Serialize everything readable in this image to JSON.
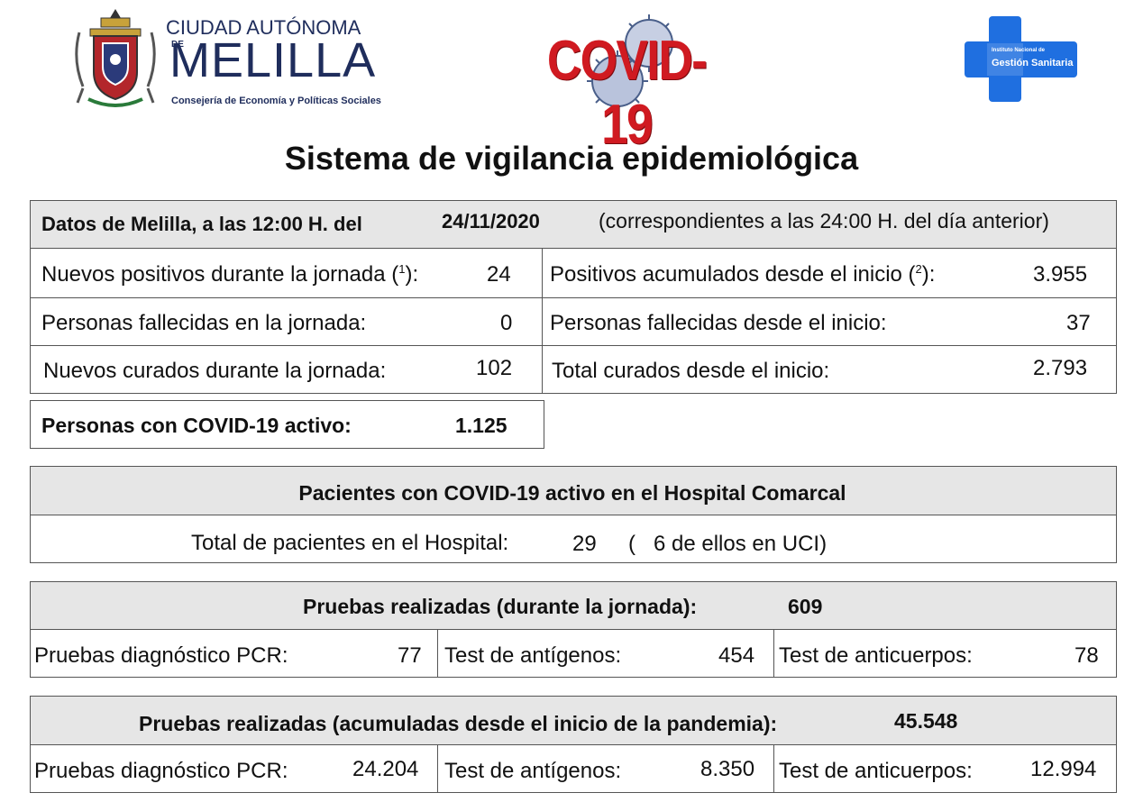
{
  "header": {
    "melilla_logo": {
      "line1": "CIUDAD AUTÓNOMA",
      "line_de": "DE",
      "line2": "MELILLA",
      "line3": "Consejería de Economía y Políticas Sociales"
    },
    "covid_logo": {
      "text": "COVID-19"
    },
    "ingesa_logo": {
      "line1": "Instituto Nacional de",
      "line2": "Gestión Sanitaria",
      "color": "#1f6fe0"
    }
  },
  "title": "Sistema de vigilancia epidemiológica",
  "datos": {
    "label": "Datos de Melilla, a  las 12:00 H. del",
    "date": "24/11/2020",
    "note": "(correspondientes a las 24:00 H. del día anterior)",
    "rows": [
      {
        "left_label": "Nuevos positivos durante la jornada (",
        "left_sup": "1",
        "left_close": "):",
        "left_value": "24",
        "right_label": "Positivos acumulados desde el inicio (",
        "right_sup": "2",
        "right_close": "):",
        "right_value": "3.955"
      },
      {
        "left_label": "Personas fallecidas en la jornada:",
        "left_value": "0",
        "right_label": "Personas fallecidas desde el inicio:",
        "right_value": "37"
      },
      {
        "left_label": "Nuevos curados durante la jornada:",
        "left_value": "102",
        "right_label": "Total curados desde el inicio:",
        "right_value": "2.793"
      }
    ],
    "active_label": "Personas con COVID-19 activo:",
    "active_value": "1.125"
  },
  "hospital": {
    "title": "Pacientes con COVID-19 activo en el Hospital Comarcal",
    "label": "Total de pacientes en el Hospital:",
    "value": "29",
    "paren_open": "(",
    "uci": "6 de ellos en UCI)"
  },
  "pruebas_jornada": {
    "title": "Pruebas realizadas (durante la jornada):",
    "total": "609",
    "pcr_label": "Pruebas diagnóstico PCR:",
    "pcr_value": "77",
    "antigen_label": "Test de antígenos:",
    "antigen_value": "454",
    "antibody_label": "Test de anticuerpos:",
    "antibody_value": "78"
  },
  "pruebas_acumuladas": {
    "title": "Pruebas realizadas (acumuladas desde el inicio de la pandemia):",
    "total": "45.548",
    "pcr_label": "Pruebas diagnóstico PCR:",
    "pcr_value": "24.204",
    "antigen_label": "Test de antígenos:",
    "antigen_value": "8.350",
    "antibody_label": "Test de  anticuerpos:",
    "antibody_value": "12.994"
  }
}
